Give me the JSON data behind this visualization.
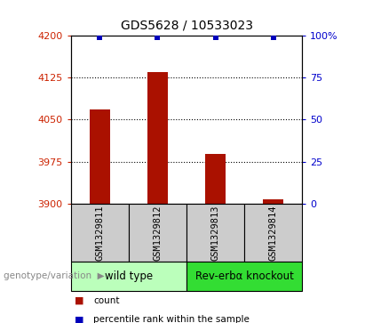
{
  "title": "GDS5628 / 10533023",
  "samples": [
    "GSM1329811",
    "GSM1329812",
    "GSM1329813",
    "GSM1329814"
  ],
  "bar_values": [
    4068,
    4135,
    3988,
    3908
  ],
  "percentile_values": [
    99,
    99,
    99,
    99
  ],
  "ylim_left": [
    3900,
    4200
  ],
  "ylim_right": [
    0,
    100
  ],
  "yticks_left": [
    3900,
    3975,
    4050,
    4125,
    4200
  ],
  "ytick_labels_left": [
    "3900",
    "3975",
    "4050",
    "4125",
    "4200"
  ],
  "yticks_right": [
    0,
    25,
    50,
    75,
    100
  ],
  "ytick_labels_right": [
    "0",
    "25",
    "50",
    "75",
    "100%"
  ],
  "bar_color": "#aa1100",
  "dot_color": "#0000bb",
  "bar_width": 0.35,
  "groups": [
    {
      "label": "wild type",
      "samples": [
        0,
        1
      ],
      "color": "#bbffbb"
    },
    {
      "label": "Rev-erbα knockout",
      "samples": [
        2,
        3
      ],
      "color": "#33dd33"
    }
  ],
  "group_label_prefix": "genotype/variation",
  "legend_items": [
    {
      "color": "#aa1100",
      "label": "count"
    },
    {
      "color": "#0000bb",
      "label": "percentile rank within the sample"
    }
  ],
  "grid_color": "black",
  "sample_box_color": "#cccccc",
  "left_tick_color": "#cc2200",
  "right_tick_color": "#0000cc"
}
